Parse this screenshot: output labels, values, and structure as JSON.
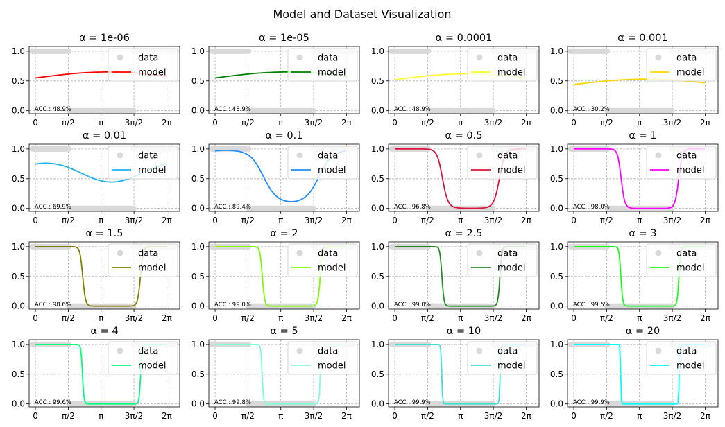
{
  "figure": {
    "title": "Model and Dataset Visualization"
  },
  "legend_labels": {
    "data": "data",
    "model": "model"
  },
  "colors": {
    "data": "#d9d9d9",
    "grid": "#b0b0b0"
  },
  "chart_data": [
    {
      "type": "line",
      "title": "α = 1e-06",
      "alpha": 1e-06,
      "accuracy": "ACC : 48.9%",
      "color": "#ff0000",
      "x_ticks": [
        "0",
        "π/2",
        "π",
        "3π/2",
        "2π"
      ],
      "y_ticks": [
        "0.0",
        "0.5",
        "1.0"
      ],
      "xlim": [
        -0.3,
        6.9
      ],
      "ylim": [
        -0.05,
        1.08
      ],
      "grid": true,
      "legend_position": "upper right",
      "series": [
        {
          "name": "data",
          "type": "scatter"
        },
        {
          "name": "model",
          "type": "line"
        }
      ]
    },
    {
      "type": "line",
      "title": "α = 1e-05",
      "alpha": 1e-05,
      "accuracy": "ACC : 48.9%",
      "color": "#008000",
      "x_ticks": [
        "0",
        "π/2",
        "π",
        "3π/2",
        "2π"
      ],
      "y_ticks": [
        "0.0",
        "0.5",
        "1.0"
      ],
      "xlim": [
        -0.3,
        6.9
      ],
      "ylim": [
        -0.05,
        1.08
      ],
      "grid": true,
      "legend_position": "upper right",
      "series": [
        {
          "name": "data",
          "type": "scatter"
        },
        {
          "name": "model",
          "type": "line"
        }
      ]
    },
    {
      "type": "line",
      "title": "α = 0.0001",
      "alpha": 0.0001,
      "accuracy": "ACC : 48.9%",
      "color": "#ffff33",
      "x_ticks": [
        "0",
        "π/2",
        "π",
        "3π/2",
        "2π"
      ],
      "y_ticks": [
        "0.0",
        "0.5",
        "1.0"
      ],
      "xlim": [
        -0.3,
        6.9
      ],
      "ylim": [
        -0.05,
        1.08
      ],
      "grid": true,
      "legend_position": "upper right",
      "series": [
        {
          "name": "data",
          "type": "scatter"
        },
        {
          "name": "model",
          "type": "line"
        }
      ]
    },
    {
      "type": "line",
      "title": "α = 0.001",
      "alpha": 0.001,
      "accuracy": "ACC : 30.2%",
      "color": "#ffd700",
      "x_ticks": [
        "0",
        "π/2",
        "π",
        "3π/2",
        "2π"
      ],
      "y_ticks": [
        "0.0",
        "0.5",
        "1.0"
      ],
      "xlim": [
        -0.3,
        6.9
      ],
      "ylim": [
        -0.05,
        1.08
      ],
      "grid": true,
      "legend_position": "upper right",
      "series": [
        {
          "name": "data",
          "type": "scatter"
        },
        {
          "name": "model",
          "type": "line"
        }
      ]
    },
    {
      "type": "line",
      "title": "α = 0.01",
      "alpha": 0.01,
      "accuracy": "ACC : 69.9%",
      "color": "#1ab2f0",
      "x_ticks": [
        "0",
        "π/2",
        "π",
        "3π/2",
        "2π"
      ],
      "y_ticks": [
        "0.0",
        "0.5",
        "1.0"
      ],
      "xlim": [
        -0.3,
        6.9
      ],
      "ylim": [
        -0.05,
        1.08
      ],
      "grid": true,
      "legend_position": "upper right",
      "series": [
        {
          "name": "data",
          "type": "scatter"
        },
        {
          "name": "model",
          "type": "line"
        }
      ]
    },
    {
      "type": "line",
      "title": "α = 0.1",
      "alpha": 0.1,
      "accuracy": "ACC : 89.4%",
      "color": "#1e90ff",
      "x_ticks": [
        "0",
        "π/2",
        "π",
        "3π/2",
        "2π"
      ],
      "y_ticks": [
        "0.0",
        "0.5",
        "1.0"
      ],
      "xlim": [
        -0.3,
        6.9
      ],
      "ylim": [
        -0.05,
        1.08
      ],
      "grid": true,
      "legend_position": "upper right",
      "series": [
        {
          "name": "data",
          "type": "scatter"
        },
        {
          "name": "model",
          "type": "line"
        }
      ]
    },
    {
      "type": "line",
      "title": "α = 0.5",
      "alpha": 0.5,
      "accuracy": "ACC : 96.8%",
      "color": "#dc143c",
      "x_ticks": [
        "0",
        "π/2",
        "π",
        "3π/2",
        "2π"
      ],
      "y_ticks": [
        "0.0",
        "0.5",
        "1.0"
      ],
      "xlim": [
        -0.3,
        6.9
      ],
      "ylim": [
        -0.05,
        1.08
      ],
      "grid": true,
      "legend_position": "upper right",
      "series": [
        {
          "name": "data",
          "type": "scatter"
        },
        {
          "name": "model",
          "type": "line"
        }
      ]
    },
    {
      "type": "line",
      "title": "α = 1",
      "alpha": 1,
      "accuracy": "ACC : 98.0%",
      "color": "#ff00ff",
      "x_ticks": [
        "0",
        "π/2",
        "π",
        "3π/2",
        "2π"
      ],
      "y_ticks": [
        "0.0",
        "0.5",
        "1.0"
      ],
      "xlim": [
        -0.3,
        6.9
      ],
      "ylim": [
        -0.05,
        1.08
      ],
      "grid": true,
      "legend_position": "upper right",
      "series": [
        {
          "name": "data",
          "type": "scatter"
        },
        {
          "name": "model",
          "type": "line"
        }
      ]
    },
    {
      "type": "line",
      "title": "α = 1.5",
      "alpha": 1.5,
      "accuracy": "ACC : 98.6%",
      "color": "#808000",
      "x_ticks": [
        "0",
        "π/2",
        "π",
        "3π/2",
        "2π"
      ],
      "y_ticks": [
        "0.0",
        "0.5",
        "1.0"
      ],
      "xlim": [
        -0.3,
        6.9
      ],
      "ylim": [
        -0.05,
        1.08
      ],
      "grid": true,
      "legend_position": "upper right",
      "series": [
        {
          "name": "data",
          "type": "scatter"
        },
        {
          "name": "model",
          "type": "line"
        }
      ]
    },
    {
      "type": "line",
      "title": "α = 2",
      "alpha": 2,
      "accuracy": "ACC : 99.0%",
      "color": "#7cfc00",
      "x_ticks": [
        "0",
        "π/2",
        "π",
        "3π/2",
        "2π"
      ],
      "y_ticks": [
        "0.0",
        "0.5",
        "1.0"
      ],
      "xlim": [
        -0.3,
        6.9
      ],
      "ylim": [
        -0.05,
        1.08
      ],
      "grid": true,
      "legend_position": "upper right",
      "series": [
        {
          "name": "data",
          "type": "scatter"
        },
        {
          "name": "model",
          "type": "line"
        }
      ]
    },
    {
      "type": "line",
      "title": "α = 2.5",
      "alpha": 2.5,
      "accuracy": "ACC : 99.0%",
      "color": "#228b22",
      "x_ticks": [
        "0",
        "π/2",
        "π",
        "3π/2",
        "2π"
      ],
      "y_ticks": [
        "0.0",
        "0.5",
        "1.0"
      ],
      "xlim": [
        -0.3,
        6.9
      ],
      "ylim": [
        -0.05,
        1.08
      ],
      "grid": true,
      "legend_position": "upper right",
      "series": [
        {
          "name": "data",
          "type": "scatter"
        },
        {
          "name": "model",
          "type": "line"
        }
      ]
    },
    {
      "type": "line",
      "title": "α = 3",
      "alpha": 3,
      "accuracy": "ACC : 99.5%",
      "color": "#1aff1a",
      "x_ticks": [
        "0",
        "π/2",
        "π",
        "3π/2",
        "2π"
      ],
      "y_ticks": [
        "0.0",
        "0.5",
        "1.0"
      ],
      "xlim": [
        -0.3,
        6.9
      ],
      "ylim": [
        -0.05,
        1.08
      ],
      "grid": true,
      "legend_position": "upper right",
      "series": [
        {
          "name": "data",
          "type": "scatter"
        },
        {
          "name": "model",
          "type": "line"
        }
      ]
    },
    {
      "type": "line",
      "title": "α = 4",
      "alpha": 4,
      "accuracy": "ACC : 99.6%",
      "color": "#00ff7f",
      "x_ticks": [
        "0",
        "π/2",
        "π",
        "3π/2",
        "2π"
      ],
      "y_ticks": [
        "0.0",
        "0.5",
        "1.0"
      ],
      "xlim": [
        -0.3,
        6.9
      ],
      "ylim": [
        -0.05,
        1.08
      ],
      "grid": true,
      "legend_position": "upper right",
      "series": [
        {
          "name": "data",
          "type": "scatter"
        },
        {
          "name": "model",
          "type": "line"
        }
      ]
    },
    {
      "type": "line",
      "title": "α = 5",
      "alpha": 5,
      "accuracy": "ACC : 99.8%",
      "color": "#7fffd4",
      "x_ticks": [
        "0",
        "π/2",
        "π",
        "3π/2",
        "2π"
      ],
      "y_ticks": [
        "0.0",
        "0.5",
        "1.0"
      ],
      "xlim": [
        -0.3,
        6.9
      ],
      "ylim": [
        -0.05,
        1.08
      ],
      "grid": true,
      "legend_position": "upper right",
      "series": [
        {
          "name": "data",
          "type": "scatter"
        },
        {
          "name": "model",
          "type": "line"
        }
      ]
    },
    {
      "type": "line",
      "title": "α = 10",
      "alpha": 10,
      "accuracy": "ACC : 99.9%",
      "color": "#40e0d0",
      "x_ticks": [
        "0",
        "π/2",
        "π",
        "3π/2",
        "2π"
      ],
      "y_ticks": [
        "0.0",
        "0.5",
        "1.0"
      ],
      "xlim": [
        -0.3,
        6.9
      ],
      "ylim": [
        -0.05,
        1.08
      ],
      "grid": true,
      "legend_position": "upper right",
      "series": [
        {
          "name": "data",
          "type": "scatter"
        },
        {
          "name": "model",
          "type": "line"
        }
      ]
    },
    {
      "type": "line",
      "title": "α = 20",
      "alpha": 20,
      "accuracy": "ACC : 99.9%",
      "color": "#00ffff",
      "x_ticks": [
        "0",
        "π/2",
        "π",
        "3π/2",
        "2π"
      ],
      "y_ticks": [
        "0.0",
        "0.5",
        "1.0"
      ],
      "xlim": [
        -0.3,
        6.9
      ],
      "ylim": [
        -0.05,
        1.08
      ],
      "grid": true,
      "legend_position": "upper right",
      "series": [
        {
          "name": "data",
          "type": "scatter"
        },
        {
          "name": "model",
          "type": "line"
        }
      ]
    }
  ]
}
